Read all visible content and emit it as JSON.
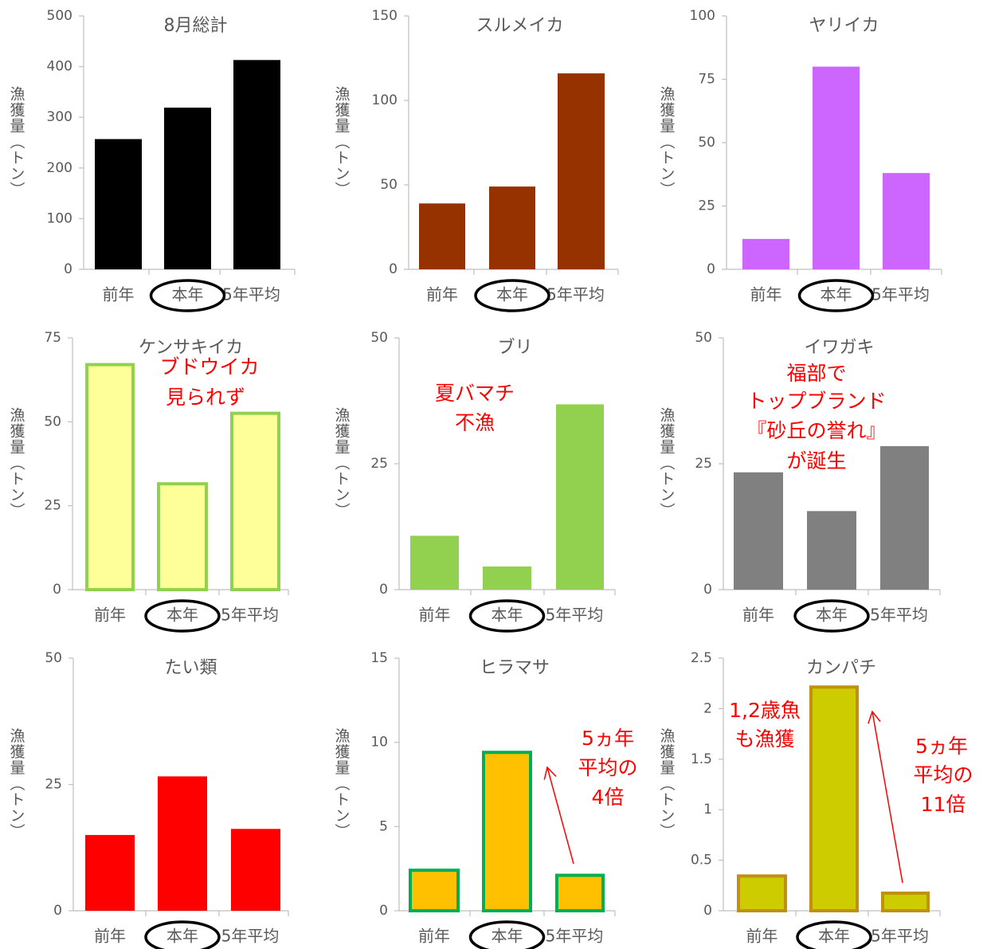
{
  "chart_data": [
    {
      "type": "bar",
      "title": "8月総計",
      "ylabel": "漁獲量（トン）",
      "categories": [
        "前年",
        "本年",
        "5年平均"
      ],
      "values": [
        257,
        319,
        413
      ],
      "ylim": [
        0,
        500
      ],
      "yticks": [
        "0",
        "100",
        "200",
        "300",
        "400",
        "500"
      ],
      "fill": "#000000",
      "stroke": "#000000",
      "annotations": []
    },
    {
      "type": "bar",
      "title": "スルメイカ",
      "ylabel": "漁獲量（トン）",
      "categories": [
        "前年",
        "本年",
        "5年平均"
      ],
      "values": [
        39,
        49,
        116
      ],
      "ylim": [
        0,
        150
      ],
      "yticks": [
        "0",
        "50",
        "100",
        "150"
      ],
      "fill": "#963200",
      "stroke": "#963200",
      "annotations": []
    },
    {
      "type": "bar",
      "title": "ヤリイカ",
      "ylabel": "漁獲量（トン）",
      "categories": [
        "前年",
        "本年",
        "5年平均"
      ],
      "values": [
        12,
        80,
        38
      ],
      "ylim": [
        0,
        100
      ],
      "yticks": [
        "0",
        "25",
        "50",
        "75",
        "100"
      ],
      "fill": "#cc66ff",
      "stroke": "#cc66ff",
      "annotations": []
    },
    {
      "type": "bar",
      "title": "ケンサキイカ",
      "ylabel": "漁獲量（トン）",
      "categories": [
        "前年",
        "本年",
        "5年平均"
      ],
      "values": [
        67.5,
        32,
        53
      ],
      "ylim": [
        0,
        75
      ],
      "yticks": [
        "0",
        "25",
        "50",
        "75"
      ],
      "fill": "#ffff99",
      "stroke": "#92d050",
      "annotations": [
        "ブドウイカ",
        "見られず"
      ]
    },
    {
      "type": "bar",
      "title": "ブリ",
      "ylabel": "漁獲量（トン）",
      "categories": [
        "前年",
        "本年",
        "5年平均"
      ],
      "values": [
        10.7,
        4.6,
        36.8
      ],
      "ylim": [
        0,
        50
      ],
      "yticks": [
        "0",
        "25",
        "50"
      ],
      "fill": "#92d050",
      "stroke": "#92d050",
      "annotations": [
        "夏バマチ",
        "不漁"
      ]
    },
    {
      "type": "bar",
      "title": "イワガキ",
      "ylabel": "漁獲量（トン）",
      "categories": [
        "前年",
        "本年",
        "5年平均"
      ],
      "values": [
        23.3,
        15.6,
        28.5
      ],
      "ylim": [
        0,
        50
      ],
      "yticks": [
        "0",
        "25",
        "50"
      ],
      "fill": "#808080",
      "stroke": "#808080",
      "annotations": [
        "福部で",
        "トップブランド",
        "『砂丘の誉れ』",
        "が誕生"
      ]
    },
    {
      "type": "bar",
      "title": "たい類",
      "ylabel": "漁獲量（トン）",
      "categories": [
        "前年",
        "本年",
        "5年平均"
      ],
      "values": [
        15,
        26.6,
        16.2
      ],
      "ylim": [
        0,
        50
      ],
      "yticks": [
        "0",
        "25",
        "50"
      ],
      "fill": "#ff0000",
      "stroke": "#ff0000",
      "annotations": []
    },
    {
      "type": "bar",
      "title": "ヒラマサ",
      "ylabel": "漁獲量（トン）",
      "categories": [
        "前年",
        "本年",
        "5年平均"
      ],
      "values": [
        2.5,
        9.5,
        2.2
      ],
      "ylim": [
        0,
        15
      ],
      "yticks": [
        "0",
        "5",
        "10",
        "15"
      ],
      "fill": "#ffc000",
      "stroke": "#00b050",
      "annotations": [
        "5ヵ年",
        "平均の",
        "4倍"
      ]
    },
    {
      "type": "bar",
      "title": "カンパチ",
      "ylabel": "漁獲量（トン）",
      "categories": [
        "前年",
        "本年",
        "5年平均"
      ],
      "values": [
        0.36,
        2.23,
        0.19
      ],
      "ylim": [
        0,
        2.5
      ],
      "yticks": [
        "0",
        "0.5",
        "1",
        "1.5",
        "2",
        "2.5"
      ],
      "fill": "#cccc00",
      "stroke": "#c09010",
      "annotations": [
        "1,2歳魚",
        "も漁獲",
        "5ヵ年",
        "平均の",
        "11倍"
      ]
    }
  ]
}
